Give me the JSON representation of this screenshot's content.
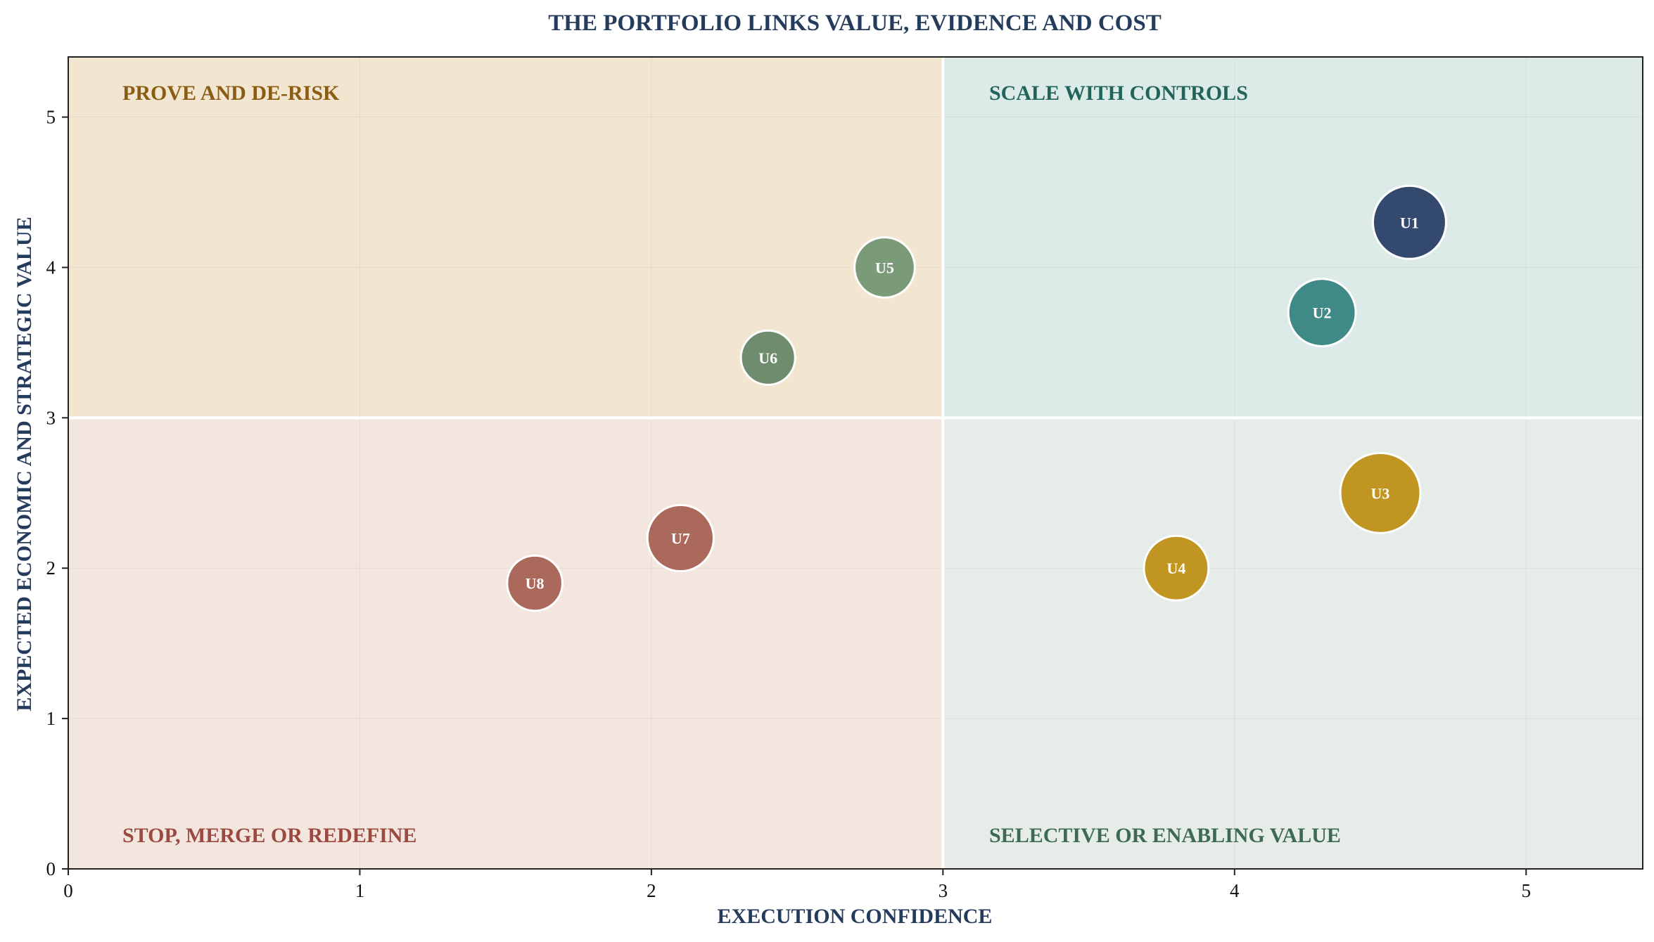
{
  "chart_data": {
    "type": "scatter",
    "title": "THE PORTFOLIO LINKS VALUE, EVIDENCE AND COST",
    "xlabel": "EXECUTION CONFIDENCE",
    "ylabel": "EXPECTED ECONOMIC AND STRATEGIC VALUE",
    "xlim": [
      0,
      5.4
    ],
    "ylim": [
      0,
      5.4
    ],
    "xticks": [
      0,
      1,
      2,
      3,
      4,
      5
    ],
    "yticks": [
      0,
      1,
      2,
      3,
      4,
      5
    ],
    "grid": true,
    "divider": {
      "x": 3,
      "y": 3
    },
    "quadrants": [
      {
        "id": "prove",
        "label": "PROVE AND DE-RISK",
        "x_range": [
          0,
          3
        ],
        "y_range": [
          3,
          5.4
        ],
        "fill": "#f2e6d0",
        "text_color": "#8a5c14"
      },
      {
        "id": "scale",
        "label": "SCALE WITH CONTROLS",
        "x_range": [
          3,
          5.4
        ],
        "y_range": [
          3,
          5.4
        ],
        "fill": "#dcebe8",
        "text_color": "#22645c"
      },
      {
        "id": "stop",
        "label": "STOP, MERGE OR REDEFINE",
        "x_range": [
          0,
          3
        ],
        "y_range": [
          0,
          3
        ],
        "fill": "#f2e6df",
        "text_color": "#9a4a40"
      },
      {
        "id": "selective",
        "label": "SELECTIVE OR ENABLING VALUE",
        "x_range": [
          3,
          5.4
        ],
        "y_range": [
          0,
          3
        ],
        "fill": "#e6ede9",
        "text_color": "#3f6a52"
      }
    ],
    "points": [
      {
        "label": "U1",
        "x": 4.6,
        "y": 4.3,
        "size": 1.0,
        "color": "#34496e"
      },
      {
        "label": "U2",
        "x": 4.3,
        "y": 3.7,
        "size": 0.85,
        "color": "#3f8a86"
      },
      {
        "label": "U3",
        "x": 4.5,
        "y": 2.5,
        "size": 1.2,
        "color": "#c09522"
      },
      {
        "label": "U4",
        "x": 3.8,
        "y": 2.0,
        "size": 0.78,
        "color": "#c09522"
      },
      {
        "label": "U5",
        "x": 2.8,
        "y": 4.0,
        "size": 0.68,
        "color": "#7b9a78"
      },
      {
        "label": "U6",
        "x": 2.4,
        "y": 3.4,
        "size": 0.55,
        "color": "#6f8d6e"
      },
      {
        "label": "U7",
        "x": 2.1,
        "y": 2.2,
        "size": 0.82,
        "color": "#ab695c"
      },
      {
        "label": "U8",
        "x": 1.6,
        "y": 1.9,
        "size": 0.57,
        "color": "#ab695c"
      }
    ]
  }
}
